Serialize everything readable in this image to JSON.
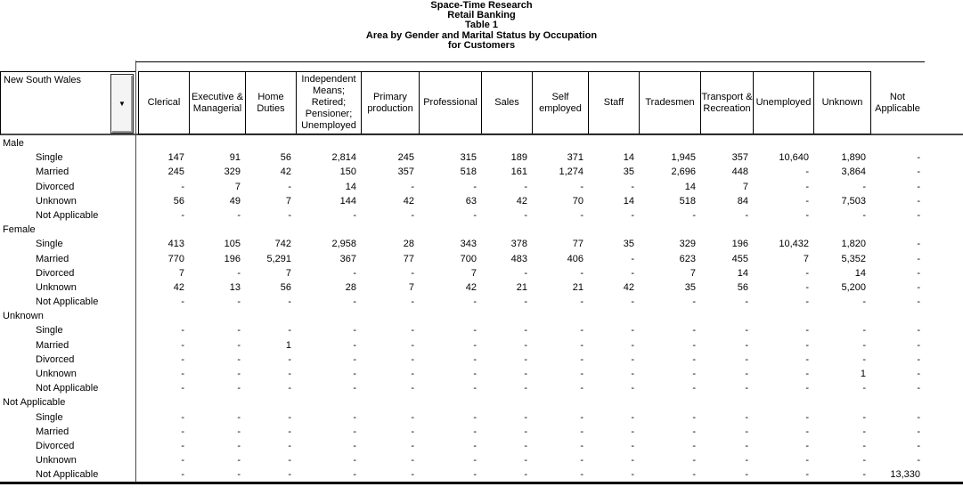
{
  "title": {
    "lines": [
      "Space-Time Research",
      "Retail Banking",
      "Table 1",
      "Area by Gender and Marital Status by Occupation",
      "for Customers"
    ]
  },
  "table": {
    "area_label": "New South Wales",
    "dropdown_icon": "▼",
    "columns": [
      "Clerical",
      "Executive &\nManagerial",
      "Home\nDuties",
      "Independent\nMeans;\nRetired;\nPensioner;\nUnemployed",
      "Primary\nproduction",
      "Professional",
      "Sales",
      "Self\nemployed",
      "Staff",
      "Tradesmen",
      "Transport &\nRecreation",
      "Unemployed",
      "Unknown",
      "Not\nApplicable"
    ],
    "row_groups": [
      {
        "label": "Male",
        "rows": [
          {
            "label": "Single",
            "values": [
              "147",
              "91",
              "56",
              "2,814",
              "245",
              "315",
              "189",
              "371",
              "14",
              "1,945",
              "357",
              "10,640",
              "1,890",
              "-"
            ]
          },
          {
            "label": "Married",
            "values": [
              "245",
              "329",
              "42",
              "150",
              "357",
              "518",
              "161",
              "1,274",
              "35",
              "2,696",
              "448",
              "-",
              "3,864",
              "-"
            ]
          },
          {
            "label": "Divorced",
            "values": [
              "-",
              "7",
              "-",
              "14",
              "-",
              "-",
              "-",
              "-",
              "-",
              "14",
              "7",
              "-",
              "-",
              "-"
            ]
          },
          {
            "label": "Unknown",
            "values": [
              "56",
              "49",
              "7",
              "144",
              "42",
              "63",
              "42",
              "70",
              "14",
              "518",
              "84",
              "-",
              "7,503",
              "-"
            ]
          },
          {
            "label": "Not Applicable",
            "values": [
              "-",
              "-",
              "-",
              "-",
              "-",
              "-",
              "-",
              "-",
              "-",
              "-",
              "-",
              "-",
              "-",
              "-"
            ]
          }
        ]
      },
      {
        "label": "Female",
        "rows": [
          {
            "label": "Single",
            "values": [
              "413",
              "105",
              "742",
              "2,958",
              "28",
              "343",
              "378",
              "77",
              "35",
              "329",
              "196",
              "10,432",
              "1,820",
              "-"
            ]
          },
          {
            "label": "Married",
            "values": [
              "770",
              "196",
              "5,291",
              "367",
              "77",
              "700",
              "483",
              "406",
              "-",
              "623",
              "455",
              "7",
              "5,352",
              "-"
            ]
          },
          {
            "label": "Divorced",
            "values": [
              "7",
              "-",
              "7",
              "-",
              "-",
              "7",
              "-",
              "-",
              "-",
              "7",
              "14",
              "-",
              "14",
              "-"
            ]
          },
          {
            "label": "Unknown",
            "values": [
              "42",
              "13",
              "56",
              "28",
              "7",
              "42",
              "21",
              "21",
              "42",
              "35",
              "56",
              "-",
              "5,200",
              "-"
            ]
          },
          {
            "label": "Not Applicable",
            "values": [
              "-",
              "-",
              "-",
              "-",
              "-",
              "-",
              "-",
              "-",
              "-",
              "-",
              "-",
              "-",
              "-",
              "-"
            ]
          }
        ]
      },
      {
        "label": "Unknown",
        "rows": [
          {
            "label": "Single",
            "values": [
              "-",
              "-",
              "-",
              "-",
              "-",
              "-",
              "-",
              "-",
              "-",
              "-",
              "-",
              "-",
              "-",
              "-"
            ]
          },
          {
            "label": "Married",
            "values": [
              "-",
              "-",
              "1",
              "-",
              "-",
              "-",
              "-",
              "-",
              "-",
              "-",
              "-",
              "-",
              "-",
              "-"
            ]
          },
          {
            "label": "Divorced",
            "values": [
              "-",
              "-",
              "-",
              "-",
              "-",
              "-",
              "-",
              "-",
              "-",
              "-",
              "-",
              "-",
              "-",
              "-"
            ]
          },
          {
            "label": "Unknown",
            "values": [
              "-",
              "-",
              "-",
              "-",
              "-",
              "-",
              "-",
              "-",
              "-",
              "-",
              "-",
              "-",
              "1",
              "-"
            ]
          },
          {
            "label": "Not Applicable",
            "values": [
              "-",
              "-",
              "-",
              "-",
              "-",
              "-",
              "-",
              "-",
              "-",
              "-",
              "-",
              "-",
              "-",
              "-"
            ]
          }
        ]
      },
      {
        "label": "Not Applicable",
        "rows": [
          {
            "label": "Single",
            "values": [
              "-",
              "-",
              "-",
              "-",
              "-",
              "-",
              "-",
              "-",
              "-",
              "-",
              "-",
              "-",
              "-",
              "-"
            ]
          },
          {
            "label": "Married",
            "values": [
              "-",
              "-",
              "-",
              "-",
              "-",
              "-",
              "-",
              "-",
              "-",
              "-",
              "-",
              "-",
              "-",
              "-"
            ]
          },
          {
            "label": "Divorced",
            "values": [
              "-",
              "-",
              "-",
              "-",
              "-",
              "-",
              "-",
              "-",
              "-",
              "-",
              "-",
              "-",
              "-",
              "-"
            ]
          },
          {
            "label": "Unknown",
            "values": [
              "-",
              "-",
              "-",
              "-",
              "-",
              "-",
              "-",
              "-",
              "-",
              "-",
              "-",
              "-",
              "-",
              "-"
            ]
          },
          {
            "label": "Not Applicable",
            "values": [
              "-",
              "-",
              "-",
              "-",
              "-",
              "-",
              "-",
              "-",
              "-",
              "-",
              "-",
              "-",
              "-",
              "13,330"
            ]
          }
        ]
      }
    ]
  },
  "colors": {
    "text": "#000000",
    "cell_border": "#000000",
    "separator_line": "#4a4a4a",
    "bottom_border": "#000000",
    "button_face": "#f4f4f4"
  }
}
